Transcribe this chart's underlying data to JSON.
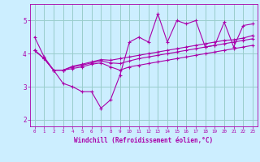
{
  "background_color": "#cceeff",
  "line_color": "#aa00aa",
  "grid_color": "#99cccc",
  "xlabel": "Windchill (Refroidissement éolien,°C)",
  "tick_color": "#aa00aa",
  "xlim": [
    -0.5,
    23.5
  ],
  "ylim": [
    1.8,
    5.5
  ],
  "yticks": [
    2,
    3,
    4,
    5
  ],
  "xticks": [
    0,
    1,
    2,
    3,
    4,
    5,
    6,
    7,
    8,
    9,
    10,
    11,
    12,
    13,
    14,
    15,
    16,
    17,
    18,
    19,
    20,
    21,
    22,
    23
  ],
  "series": [
    {
      "x": [
        0,
        1,
        2,
        3,
        4,
        5,
        6,
        7,
        8,
        9,
        10,
        11,
        12,
        13,
        14,
        15,
        16,
        17,
        18,
        19,
        20,
        21,
        22,
        23
      ],
      "y": [
        4.5,
        3.9,
        3.5,
        3.1,
        3.0,
        2.85,
        2.85,
        2.35,
        2.6,
        3.35,
        4.35,
        4.5,
        4.35,
        5.2,
        4.35,
        5.0,
        4.9,
        5.0,
        4.2,
        4.25,
        4.95,
        4.2,
        4.85,
        4.9
      ]
    },
    {
      "x": [
        0,
        1,
        2,
        3,
        4,
        5,
        6,
        7,
        8,
        9,
        10,
        11,
        12,
        13,
        14,
        15,
        16,
        17,
        18,
        19,
        20,
        21,
        22,
        23
      ],
      "y": [
        4.1,
        3.85,
        3.5,
        3.5,
        3.55,
        3.6,
        3.68,
        3.72,
        3.6,
        3.5,
        3.6,
        3.65,
        3.7,
        3.75,
        3.8,
        3.85,
        3.9,
        3.95,
        4.0,
        4.05,
        4.1,
        4.15,
        4.2,
        4.25
      ]
    },
    {
      "x": [
        0,
        1,
        2,
        3,
        4,
        5,
        6,
        7,
        8,
        9,
        10,
        11,
        12,
        13,
        14,
        15,
        16,
        17,
        18,
        19,
        20,
        21,
        22,
        23
      ],
      "y": [
        4.1,
        3.85,
        3.5,
        3.5,
        3.6,
        3.65,
        3.72,
        3.78,
        3.72,
        3.7,
        3.78,
        3.85,
        3.9,
        3.95,
        4.0,
        4.05,
        4.1,
        4.15,
        4.2,
        4.25,
        4.3,
        4.35,
        4.4,
        4.45
      ]
    },
    {
      "x": [
        0,
        1,
        2,
        3,
        4,
        5,
        6,
        7,
        8,
        9,
        10,
        11,
        12,
        13,
        14,
        15,
        16,
        17,
        18,
        19,
        20,
        21,
        22,
        23
      ],
      "y": [
        4.1,
        3.85,
        3.5,
        3.5,
        3.62,
        3.68,
        3.75,
        3.82,
        3.8,
        3.85,
        3.9,
        3.95,
        4.0,
        4.05,
        4.1,
        4.15,
        4.2,
        4.25,
        4.3,
        4.35,
        4.4,
        4.42,
        4.47,
        4.55
      ]
    }
  ]
}
